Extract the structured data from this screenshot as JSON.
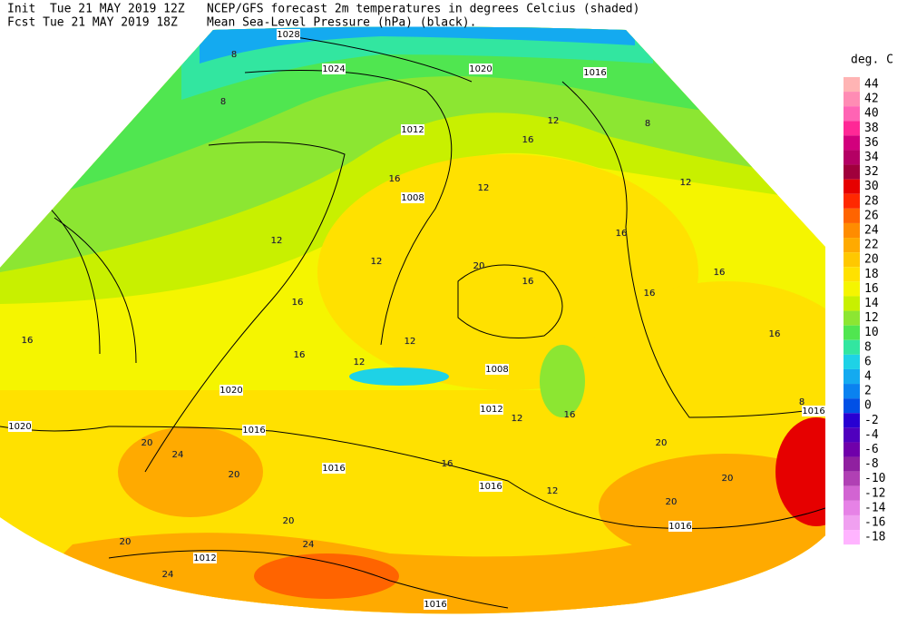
{
  "header": {
    "init": "Init  Tue 21 MAY 2019 12Z",
    "fcst": "Fcst Tue 21 MAY 2019 18Z",
    "title": "NCEP/GFS forecast 2m temperatures in degrees Celcius (shaded)",
    "subtitle": "Mean Sea-Level Pressure (hPa) (black)."
  },
  "legend": {
    "title": "deg. C",
    "levels": [
      44,
      42,
      40,
      38,
      36,
      34,
      32,
      30,
      28,
      26,
      24,
      22,
      20,
      18,
      16,
      14,
      12,
      10,
      8,
      6,
      4,
      2,
      0,
      -2,
      -4,
      -6,
      -8,
      -10,
      -12,
      -14,
      -16,
      -18
    ],
    "colors": [
      "#ffb4b4",
      "#ff8cb4",
      "#ff64b4",
      "#ff2896",
      "#d2007d",
      "#b40064",
      "#a0003c",
      "#e60000",
      "#ff2800",
      "#ff6400",
      "#ff8c00",
      "#ffaa00",
      "#ffc800",
      "#ffe100",
      "#f5f500",
      "#c8f000",
      "#8ce632",
      "#50e650",
      "#32e6a0",
      "#1ed2e6",
      "#14aaf0",
      "#0a82f0",
      "#0050e6",
      "#2800d2",
      "#5000be",
      "#7000aa",
      "#9020a0",
      "#b040b4",
      "#d264d2",
      "#e682e6",
      "#f0a0f0",
      "#ffb4ff"
    ]
  },
  "isobar_labels": [
    1028,
    1024,
    1020,
    1016,
    1012,
    1008,
    1008,
    1012,
    1020,
    1016,
    1020,
    1016,
    1016,
    1012,
    1016,
    1016,
    1016
  ],
  "temperature_labels": [
    8,
    8,
    8,
    12,
    16,
    16,
    12,
    12,
    12,
    12,
    16,
    16,
    16,
    16,
    16,
    12,
    12,
    16,
    20,
    24,
    20,
    20,
    20,
    24,
    20,
    24,
    16,
    16,
    20,
    20,
    20,
    16,
    16,
    8,
    12,
    12
  ]
}
